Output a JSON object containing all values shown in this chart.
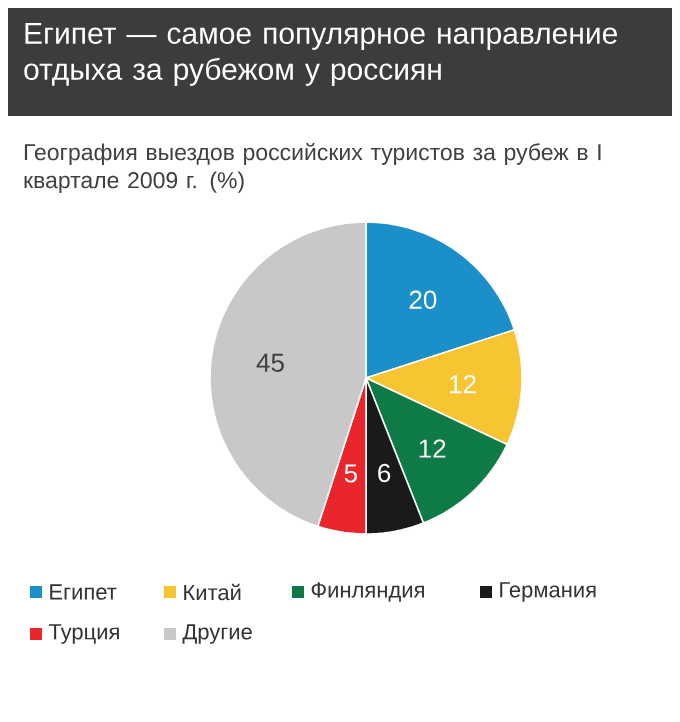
{
  "chart_data": {
    "type": "pie",
    "title": "Египет — самое популярное направление отдыха за рубежом у россиян",
    "subtitle": "География выездов российских туристов за рубеж в I квартале 2009 г. (%)",
    "categories": [
      "Египет",
      "Китай",
      "Финляндия",
      "Германия",
      "Турция",
      "Другие"
    ],
    "values": [
      20,
      12,
      12,
      6,
      5,
      45
    ],
    "colors": [
      "#1a8fc9",
      "#f7c432",
      "#0e7a45",
      "#1a1a1a",
      "#e8262c",
      "#c8c8c8"
    ],
    "data_labels": true,
    "legend": "bottom"
  }
}
